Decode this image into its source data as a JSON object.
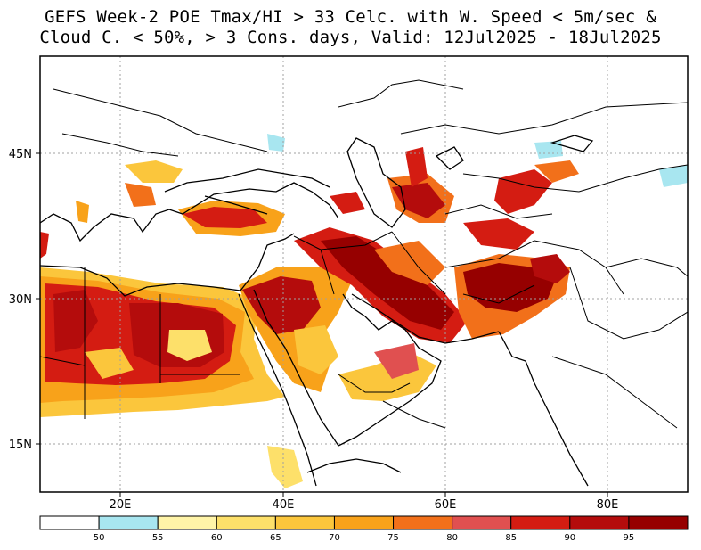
{
  "title": {
    "line1": "GEFS Week-2 POE Tmax/HI > 33 Celc. with W. Speed < 5m/sec &",
    "line2": "Cloud C. < 50%, > 3 Cons. days, Valid: 12Jul2025 - 18Jul2025"
  },
  "map": {
    "lat_labels": [
      "45N",
      "30N",
      "15N"
    ],
    "lon_labels": [
      "20E",
      "40E",
      "60E",
      "80E"
    ],
    "extent": {
      "lon": [
        10,
        90
      ],
      "lat": [
        10,
        55
      ]
    },
    "grid": "dotted",
    "colors": {
      "border": "#000000",
      "grid": "#a0a0a0"
    }
  },
  "colorbar": {
    "ticks": [
      "50",
      "55",
      "60",
      "65",
      "70",
      "75",
      "80",
      "85",
      "90",
      "95"
    ],
    "colors": [
      "#ffffff",
      "#a8e6f0",
      "#fff4a8",
      "#fde06a",
      "#fbc63c",
      "#f8a21a",
      "#f2701a",
      "#e05050",
      "#d41c12",
      "#b40c0c",
      "#960000"
    ]
  }
}
